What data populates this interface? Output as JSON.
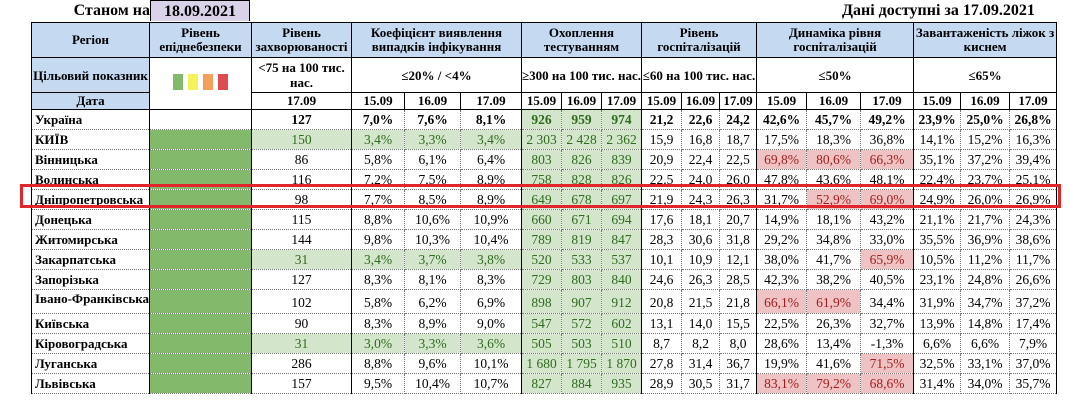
{
  "header": {
    "as_of_label": "Станом на",
    "as_of_date": "18.09.2021",
    "available_label": "Дані доступні за",
    "available_date": "17.09.2021"
  },
  "columns": {
    "region": "Регіон",
    "epi_level": "Рівень епіднебезпеки",
    "incidence": "Рівень захворюваності",
    "detection": "Коефіцієнт виявлення випадків інфікування",
    "testing": "Охоплення тестуванням",
    "hospitalization": "Рівень госпіталізацій",
    "hosp_dynamics": "Динаміка рівня госпіталізацій",
    "oxygen_beds": "Завантаженість ліжок з киснем"
  },
  "targets": {
    "label": "Цільовий показник",
    "incidence": "<75 на 100 тис. нас.",
    "detection": "≤20% / <4%",
    "testing": "≥300 на 100 тис. нас.",
    "hospitalization": "≤60 на 100 тис. нас.",
    "hosp_dynamics": "≤50%",
    "oxygen_beds": "≤65%"
  },
  "legend_colors": [
    "#82b96a",
    "#f3f35a",
    "#f2a05a",
    "#dc4c50"
  ],
  "dates": {
    "label": "Дата",
    "incidence": "17.09",
    "d1": "15.09",
    "d2": "16.09",
    "d3": "17.09"
  },
  "rows": [
    {
      "region": "Україна",
      "inc": "127",
      "det": [
        "7,0%",
        "7,6%",
        "8,1%"
      ],
      "test": [
        "926",
        "959",
        "974"
      ],
      "hosp": [
        "21,2",
        "22,6",
        "24,2"
      ],
      "dyn": [
        "42,6%",
        "45,7%",
        "49,2%"
      ],
      "beds": [
        "23,9%",
        "25,0%",
        "26,8%"
      ]
    },
    {
      "region": "КИЇВ",
      "inc": "150",
      "det": [
        "3,4%",
        "3,3%",
        "3,4%"
      ],
      "test": [
        "2 303",
        "2 428",
        "2 362"
      ],
      "hosp": [
        "15,9",
        "16,8",
        "18,7"
      ],
      "dyn": [
        "17,5%",
        "18,3%",
        "36,8%"
      ],
      "beds": [
        "14,1%",
        "15,2%",
        "16,3%"
      ]
    },
    {
      "region": "Вінницька",
      "inc": "86",
      "det": [
        "5,8%",
        "6,1%",
        "6,4%"
      ],
      "test": [
        "803",
        "826",
        "839"
      ],
      "hosp": [
        "20,9",
        "22,4",
        "22,5"
      ],
      "dyn": [
        "69,8%",
        "80,6%",
        "66,3%"
      ],
      "beds": [
        "35,1%",
        "37,2%",
        "39,4%"
      ]
    },
    {
      "region": "Волинська",
      "inc": "116",
      "det": [
        "7,2%",
        "7,5%",
        "8,9%"
      ],
      "test": [
        "758",
        "828",
        "826"
      ],
      "hosp": [
        "22,5",
        "24,0",
        "26,0"
      ],
      "dyn": [
        "47,8%",
        "43,6%",
        "48,1%"
      ],
      "beds": [
        "22,4%",
        "23,7%",
        "25,1%"
      ]
    },
    {
      "region": "Дніпропетровська",
      "inc": "98",
      "det": [
        "7,7%",
        "8,5%",
        "8,9%"
      ],
      "test": [
        "649",
        "678",
        "697"
      ],
      "hosp": [
        "21,9",
        "24,3",
        "26,3"
      ],
      "dyn": [
        "31,7%",
        "52,9%",
        "69,0%"
      ],
      "beds": [
        "24,9%",
        "26,0%",
        "26,9%"
      ]
    },
    {
      "region": "Донецька",
      "inc": "115",
      "det": [
        "8,8%",
        "10,6%",
        "10,9%"
      ],
      "test": [
        "660",
        "671",
        "694"
      ],
      "hosp": [
        "17,6",
        "18,1",
        "20,7"
      ],
      "dyn": [
        "14,9%",
        "18,1%",
        "43,2%"
      ],
      "beds": [
        "21,1%",
        "21,7%",
        "24,3%"
      ]
    },
    {
      "region": "Житомирська",
      "inc": "144",
      "det": [
        "9,8%",
        "10,3%",
        "10,4%"
      ],
      "test": [
        "789",
        "819",
        "847"
      ],
      "hosp": [
        "28,3",
        "30,6",
        "31,8"
      ],
      "dyn": [
        "29,2%",
        "34,8%",
        "33,0%"
      ],
      "beds": [
        "35,5%",
        "36,9%",
        "38,6%"
      ]
    },
    {
      "region": "Закарпатська",
      "inc": "31",
      "det": [
        "3,4%",
        "3,7%",
        "3,8%"
      ],
      "test": [
        "520",
        "533",
        "537"
      ],
      "hosp": [
        "10,1",
        "10,9",
        "12,1"
      ],
      "dyn": [
        "38,0%",
        "41,7%",
        "65,9%"
      ],
      "beds": [
        "10,5%",
        "11,2%",
        "11,7%"
      ]
    },
    {
      "region": "Запорізька",
      "inc": "127",
      "det": [
        "8,3%",
        "8,1%",
        "8,3%"
      ],
      "test": [
        "729",
        "803",
        "840"
      ],
      "hosp": [
        "24,6",
        "26,3",
        "28,5"
      ],
      "dyn": [
        "42,3%",
        "38,2%",
        "40,5%"
      ],
      "beds": [
        "23,1%",
        "24,8%",
        "26,6%"
      ]
    },
    {
      "region": "Івано-Франківська",
      "inc": "102",
      "det": [
        "5,8%",
        "6,2%",
        "6,9%"
      ],
      "test": [
        "898",
        "907",
        "912"
      ],
      "hosp": [
        "20,8",
        "21,5",
        "21,8"
      ],
      "dyn": [
        "66,1%",
        "61,9%",
        "34,4%"
      ],
      "beds": [
        "31,9%",
        "34,7%",
        "37,2%"
      ]
    },
    {
      "region": "Київська",
      "inc": "90",
      "det": [
        "8,3%",
        "8,9%",
        "9,0%"
      ],
      "test": [
        "547",
        "572",
        "602"
      ],
      "hosp": [
        "13,1",
        "14,0",
        "15,5"
      ],
      "dyn": [
        "22,5%",
        "26,3%",
        "32,7%"
      ],
      "beds": [
        "13,9%",
        "14,8%",
        "17,4%"
      ]
    },
    {
      "region": "Кіровоградська",
      "inc": "31",
      "det": [
        "3,0%",
        "3,3%",
        "3,6%"
      ],
      "test": [
        "505",
        "503",
        "510"
      ],
      "hosp": [
        "8,7",
        "8,2",
        "8,0"
      ],
      "dyn": [
        "28,6%",
        "13,4%",
        "-1,3%"
      ],
      "beds": [
        "6,6%",
        "6,6%",
        "7,9%"
      ]
    },
    {
      "region": "Луганська",
      "inc": "286",
      "det": [
        "8,8%",
        "9,6%",
        "10,1%"
      ],
      "test": [
        "1 680",
        "1 795",
        "1 870"
      ],
      "hosp": [
        "27,8",
        "31,4",
        "36,7"
      ],
      "dyn": [
        "19,9%",
        "41,6%",
        "71,5%"
      ],
      "beds": [
        "32,5%",
        "33,1%",
        "37,0%"
      ]
    },
    {
      "region": "Львівська",
      "inc": "157",
      "det": [
        "9,5%",
        "10,4%",
        "10,7%"
      ],
      "test": [
        "827",
        "884",
        "935"
      ],
      "hosp": [
        "28,9",
        "30,5",
        "31,7"
      ],
      "dyn": [
        "83,1%",
        "79,2%",
        "68,6%"
      ],
      "beds": [
        "31,4%",
        "34,0%",
        "35,7%"
      ]
    }
  ],
  "highlighted_row": "Дніпропетровська"
}
